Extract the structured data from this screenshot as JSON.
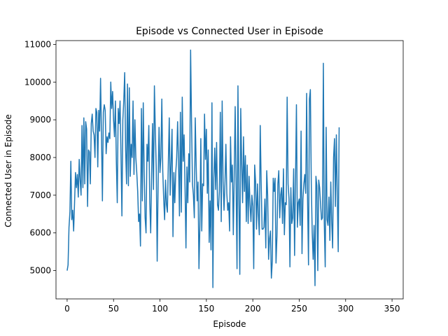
{
  "chart_data": {
    "type": "line",
    "title": "Episode vs Connected User in Episode",
    "xlabel": "Episode",
    "ylabel": "Connected User in Episode",
    "xlim": [
      -12,
      362
    ],
    "ylim": [
      4250,
      11100
    ],
    "xticks": [
      0,
      50,
      100,
      150,
      200,
      250,
      300,
      350
    ],
    "xtick_labels": [
      "0",
      "50",
      "100",
      "150",
      "200",
      "250",
      "300",
      "350"
    ],
    "yticks": [
      5000,
      6000,
      7000,
      8000,
      9000,
      10000,
      11000
    ],
    "ytick_labels": [
      "5000",
      "6000",
      "7000",
      "8000",
      "9000",
      "10000",
      "11000"
    ],
    "grid": false,
    "series_color": "#1f77b4",
    "series": [
      {
        "x_start": 0,
        "x_step": 1,
        "values": [
          5000,
          5150,
          6150,
          6550,
          7900,
          6350,
          6600,
          6050,
          6800,
          7600,
          7200,
          7550,
          6950,
          7950,
          7400,
          7000,
          8850,
          7200,
          9050,
          7300,
          8950,
          8750,
          6700,
          8200,
          8150,
          7300,
          8900,
          9150,
          8700,
          8600,
          8000,
          9300,
          9200,
          7750,
          9250,
          8700,
          10100,
          8600,
          6850,
          9200,
          9400,
          9250,
          8100,
          8550,
          8400,
          8650,
          8500,
          10000,
          9300,
          9750,
          9000,
          8550,
          9500,
          7900,
          6800,
          9300,
          8900,
          9500,
          8100,
          6450,
          9000,
          9500,
          10250,
          8200,
          7300,
          9950,
          7250,
          9850,
          7500,
          8350,
          8000,
          9500,
          7550,
          9000,
          8000,
          7600,
          7100,
          6300,
          6500,
          5650,
          9300,
          6850,
          9450,
          7600,
          6400,
          6000,
          8350,
          7900,
          8850,
          6800,
          6000,
          7550,
          8900,
          7150,
          9900,
          8700,
          7700,
          5250,
          7300,
          8800,
          7600,
          8000,
          9550,
          7650,
          6900,
          6350,
          7400,
          6750,
          6550,
          7850,
          9050,
          7000,
          7850,
          8750,
          5900,
          7600,
          6800,
          7600,
          8000,
          8950,
          7850,
          6450,
          9200,
          6550,
          9600,
          7900,
          8600,
          7200,
          5600,
          7750,
          6800,
          8100,
          7350,
          10850,
          8950,
          7300,
          7000,
          6400,
          9050,
          7800,
          6850,
          7350,
          5050,
          6200,
          8500,
          6050,
          7300,
          7250,
          9150,
          7950,
          8750,
          7050,
          8200,
          5750,
          6850,
          5550,
          9450,
          4550,
          7450,
          8250,
          7150,
          8400,
          6750,
          6600,
          7100,
          9200,
          6300,
          9500,
          7350,
          6600,
          7300,
          8350,
          7050,
          6600,
          6800,
          6050,
          8550,
          7350,
          7800,
          5950,
          7550,
          9350,
          7300,
          5050,
          9900,
          6900,
          4900,
          9300,
          7850,
          6800,
          8550,
          7100,
          8050,
          6300,
          7800,
          6250,
          7500,
          6750,
          6300,
          7000,
          6700,
          5050,
          7800,
          7350,
          6100,
          7300,
          6500,
          5950,
          8850,
          7350,
          6100,
          6100,
          6150,
          6900,
          5600,
          7650,
          7000,
          5300,
          5850,
          6050,
          4800,
          5250,
          7450,
          7100,
          7450,
          5200,
          5900,
          7300,
          7650,
          6400,
          7000,
          7200,
          6250,
          7700,
          5950,
          6800,
          6750,
          9600,
          7300,
          6900,
          5100,
          7200,
          6250,
          6400,
          7700,
          5400,
          7400,
          9400,
          6150,
          6800,
          6900,
          6200,
          8700,
          5450,
          6900,
          7300,
          7550,
          7050,
          9700,
          6850,
          5150,
          9550,
          9800,
          7300,
          6000,
          5300,
          6200,
          4600,
          7500,
          7250,
          5000,
          7400,
          7200,
          6750,
          6350,
          6400,
          10500,
          6250,
          5100,
          8800,
          6350,
          6200,
          6950,
          5800,
          7350,
          6300,
          5600,
          8000,
          8500,
          6700,
          8600,
          7000,
          5500,
          8800
        ]
      }
    ]
  }
}
